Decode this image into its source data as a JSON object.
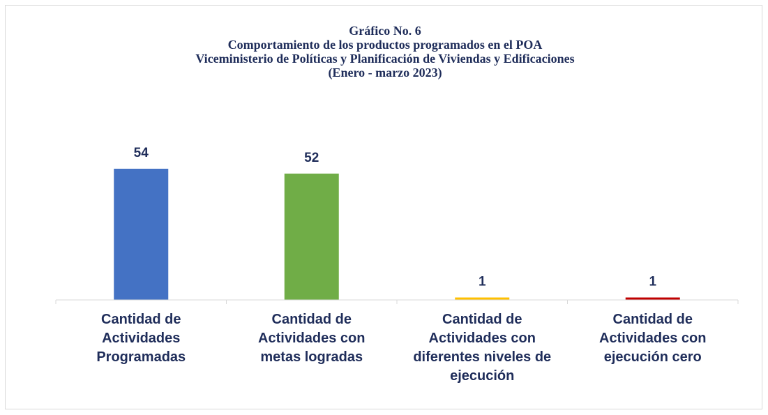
{
  "chart_data": {
    "type": "bar",
    "title": [
      "Gráfico No. 6",
      "Comportamiento de los productos programados en el POA",
      "Viceministerio de Políticas y Planificación de Viviendas y Edificaciones",
      "(Enero - marzo 2023)"
    ],
    "categories": [
      "Cantidad de Actividades Programadas",
      "Cantidad de Actividades con metas logradas",
      "Cantidad de Actividades con diferentes niveles de ejecución",
      "Cantidad de Actividades con ejecución cero"
    ],
    "values": [
      54,
      52,
      1,
      1
    ],
    "colors": [
      "#4472c4",
      "#70ad47",
      "#ffc000",
      "#c00000"
    ],
    "ylim": [
      0,
      60
    ]
  }
}
